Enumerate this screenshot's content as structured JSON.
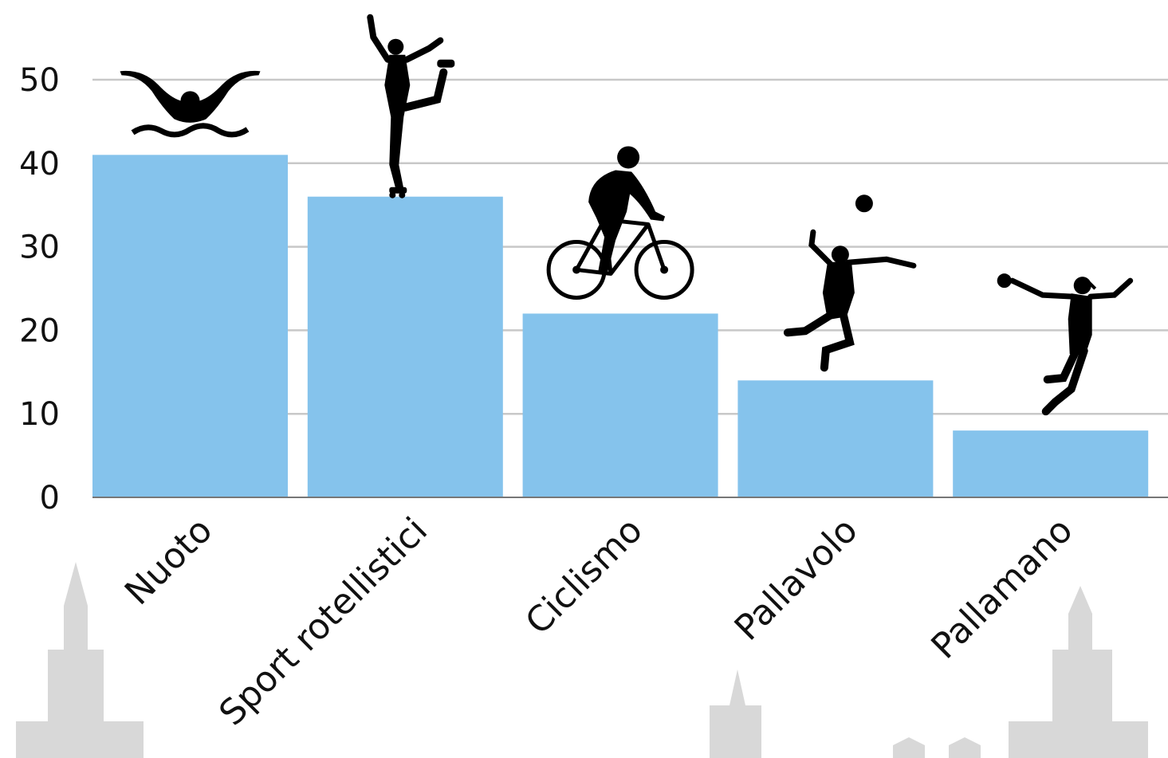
{
  "chart_data": {
    "type": "bar",
    "title": "",
    "xlabel": "",
    "ylabel": "",
    "categories": [
      "Nuoto",
      "Sport rotellistici",
      "Ciclismo",
      "Pallavolo",
      "Pallamano"
    ],
    "values": [
      41,
      36,
      22,
      14,
      8
    ],
    "ylim": [
      0,
      55
    ],
    "yticks": [
      0,
      10,
      20,
      30,
      40,
      50
    ],
    "grid": true,
    "legend": "none",
    "bar_color": "#85c3ec",
    "grid_color": "#c8c8c8",
    "icons": [
      "swimmer-icon",
      "roller-skater-icon",
      "cyclist-icon",
      "volleyball-player-icon",
      "handball-player-icon"
    ]
  }
}
